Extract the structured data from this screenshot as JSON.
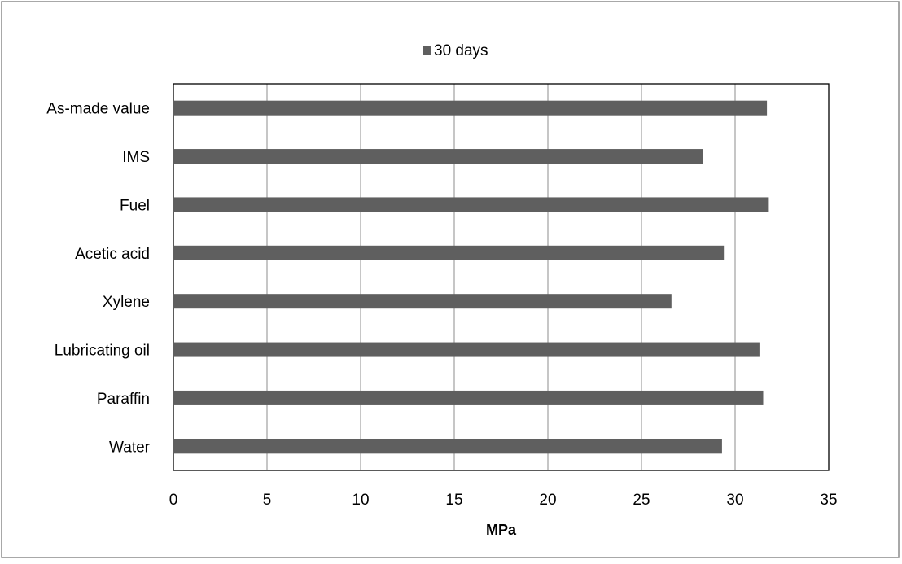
{
  "chart_data": {
    "type": "bar",
    "orientation": "horizontal",
    "title": "",
    "xlabel": "MPa",
    "ylabel": "",
    "categories": [
      "As-made value",
      "IMS",
      "Fuel",
      "Acetic acid",
      "Xylene",
      "Lubricating oil",
      "Paraffin",
      "Water"
    ],
    "series": [
      {
        "name": "30 days",
        "values": [
          31.7,
          28.3,
          31.8,
          29.4,
          26.6,
          31.3,
          31.5,
          29.3
        ],
        "color": "#5f5f5f"
      }
    ],
    "xlim": [
      0,
      35
    ],
    "xticks": [
      "0",
      "5",
      "10",
      "15",
      "20",
      "25",
      "30",
      "35"
    ],
    "grid": "vertical",
    "legend_position": "top"
  }
}
